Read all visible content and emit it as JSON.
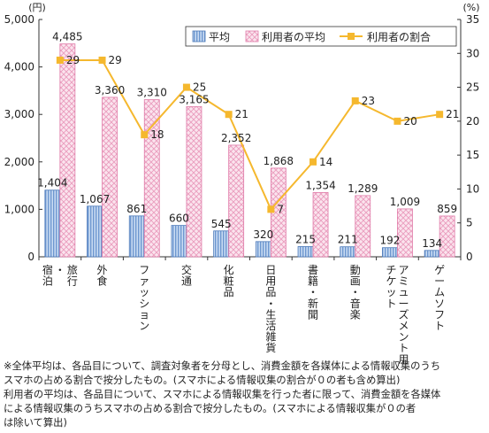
{
  "chart_data": {
    "type": "bar",
    "left_unit": "(円)",
    "right_unit": "(%)",
    "categories": [
      {
        "label": "旅行・宿泊",
        "lines": [
          "旅行",
          "・",
          "宿泊"
        ]
      },
      {
        "label": "外食",
        "lines": [
          "外食"
        ]
      },
      {
        "label": "ファッション",
        "lines": [
          "ファッション"
        ]
      },
      {
        "label": "交通",
        "lines": [
          "交通"
        ]
      },
      {
        "label": "化粧品",
        "lines": [
          "化粧品"
        ]
      },
      {
        "label": "日用品・生活雑貨",
        "lines": [
          "日用品・生活雑貨"
        ]
      },
      {
        "label": "書籍・新聞",
        "lines": [
          "書籍・新聞"
        ]
      },
      {
        "label": "動画・音楽",
        "lines": [
          "動画・音楽"
        ]
      },
      {
        "label": "アミューズメント用チケット",
        "lines": [
          "アミューズメント用",
          "チケット"
        ]
      },
      {
        "label": "ゲームソフト",
        "lines": [
          "ゲームソフト"
        ]
      }
    ],
    "series": [
      {
        "name": "平均",
        "kind": "bar",
        "axis": "left",
        "color": "#a9c4e8",
        "stroke": "#4a78b8",
        "values": [
          1404,
          1067,
          861,
          660,
          545,
          320,
          215,
          211,
          192,
          134
        ],
        "labels": [
          "1,404",
          "1,067",
          "861",
          "660",
          "545",
          "320",
          "215",
          "211",
          "192",
          "134"
        ]
      },
      {
        "name": "利用者の平均",
        "kind": "bar",
        "axis": "left",
        "color": "#f7cfe0",
        "stroke": "#e07aa8",
        "values": [
          4485,
          3360,
          3310,
          3165,
          2352,
          1868,
          1354,
          1289,
          1009,
          859
        ],
        "labels": [
          "4,485",
          "3,360",
          "3,310",
          "3,165",
          "2,352",
          "1,868",
          "1,354",
          "1,289",
          "1,009",
          "859"
        ]
      },
      {
        "name": "利用者の割合",
        "kind": "line",
        "axis": "right",
        "color": "#f5b82e",
        "values": [
          29,
          29,
          18,
          25,
          21,
          7,
          14,
          23,
          20,
          21
        ],
        "labels": [
          "29",
          "29",
          "18",
          "25",
          "21",
          "7",
          "14",
          "23",
          "20",
          "21"
        ]
      }
    ],
    "left_axis": {
      "min": 0,
      "max": 5000,
      "ticks": [
        0,
        1000,
        2000,
        3000,
        4000,
        5000
      ],
      "tick_labels": [
        "0",
        "1,000",
        "2,000",
        "3,000",
        "4,000",
        "5,000"
      ]
    },
    "right_axis": {
      "min": 0,
      "max": 35,
      "ticks": [
        0,
        5,
        10,
        15,
        20,
        25,
        30,
        35
      ],
      "tick_labels": [
        "0",
        "5",
        "10",
        "15",
        "20",
        "25",
        "30",
        "35"
      ]
    },
    "legend_position": "top-right",
    "grid": false
  },
  "notes": [
    "※全体平均は、各品目について、調査対象者を分母とし、消費金額を各媒体による情報収集のうち",
    "スマホの占める割合で按分したもの。(スマホによる情報収集の割合が０の者も含め算出)",
    "利用者の平均は、各品目について、スマホによる情報収集を行った者に限って、消費金額を各媒体",
    "による情報収集のうちスマホの占める割合で按分したもの。(スマホによる情報収集が０の者",
    "は除いて算出)"
  ]
}
